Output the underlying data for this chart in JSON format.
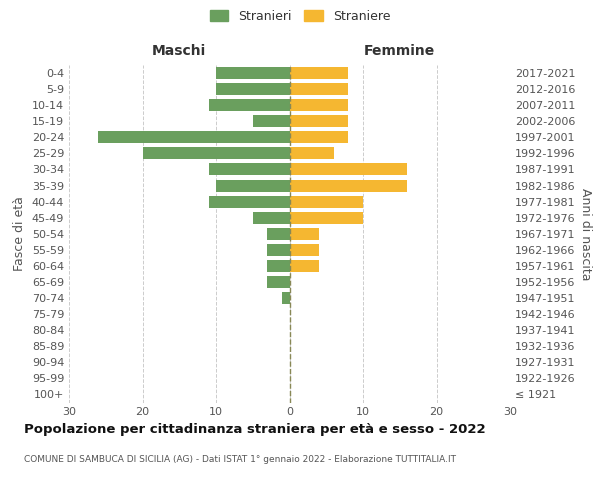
{
  "age_groups": [
    "100+",
    "95-99",
    "90-94",
    "85-89",
    "80-84",
    "75-79",
    "70-74",
    "65-69",
    "60-64",
    "55-59",
    "50-54",
    "45-49",
    "40-44",
    "35-39",
    "30-34",
    "25-29",
    "20-24",
    "15-19",
    "10-14",
    "5-9",
    "0-4"
  ],
  "birth_years": [
    "≤ 1921",
    "1922-1926",
    "1927-1931",
    "1932-1936",
    "1937-1941",
    "1942-1946",
    "1947-1951",
    "1952-1956",
    "1957-1961",
    "1962-1966",
    "1967-1971",
    "1972-1976",
    "1977-1981",
    "1982-1986",
    "1987-1991",
    "1992-1996",
    "1997-2001",
    "2002-2006",
    "2007-2011",
    "2012-2016",
    "2017-2021"
  ],
  "males": [
    0,
    0,
    0,
    0,
    0,
    0,
    1,
    3,
    3,
    3,
    3,
    5,
    11,
    10,
    11,
    20,
    26,
    5,
    11,
    10,
    10
  ],
  "females": [
    0,
    0,
    0,
    0,
    0,
    0,
    0,
    0,
    4,
    4,
    4,
    10,
    10,
    16,
    16,
    6,
    8,
    8,
    8,
    8,
    8
  ],
  "male_color": "#6a9f5e",
  "female_color": "#f5b731",
  "title": "Popolazione per cittadinanza straniera per età e sesso - 2022",
  "subtitle": "COMUNE DI SAMBUCA DI SICILIA (AG) - Dati ISTAT 1° gennaio 2022 - Elaborazione TUTTITALIA.IT",
  "left_header": "Maschi",
  "right_header": "Femmine",
  "left_ylabel": "Fasce di età",
  "right_ylabel": "Anni di nascita",
  "legend_males": "Stranieri",
  "legend_females": "Straniere",
  "xlim": 30,
  "bg_color": "#ffffff",
  "grid_color": "#cccccc",
  "bar_height": 0.75,
  "fig_width": 6.0,
  "fig_height": 5.0,
  "fig_dpi": 100
}
